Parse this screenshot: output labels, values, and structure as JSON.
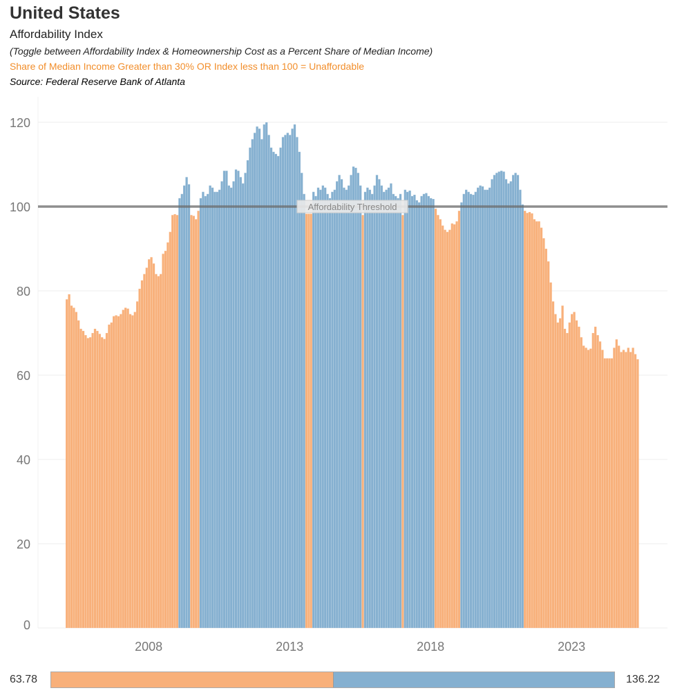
{
  "header": {
    "title": "United States",
    "subtitle": "Affordability Index",
    "note": "(Toggle between Affordability Index & Homeownership Cost as a Percent Share of Median Income)",
    "rule": "Share of Median Income Greater than 30% OR Index less than 100  = Unaffordable",
    "source": "Source: Federal Reserve Bank of Atlanta"
  },
  "chart_data": {
    "type": "bar",
    "frequency": "monthly",
    "x_start": "2005-01",
    "x_ticks": [
      "2008",
      "2013",
      "2018",
      "2023"
    ],
    "y_ticks": [
      0,
      20,
      40,
      60,
      80,
      100,
      120
    ],
    "ylim": [
      0,
      125
    ],
    "grid": "horizontal",
    "threshold": {
      "value": 100,
      "label": "Affordability Threshold",
      "color": "#6b6b6b"
    },
    "colors": {
      "below_threshold": "#f8b07a",
      "above_threshold": "#85b0d0"
    },
    "values": [
      78,
      79.2,
      76.5,
      76,
      75,
      73,
      71,
      70.5,
      69.5,
      68.8,
      69,
      70,
      71,
      70.5,
      69.8,
      69,
      68.6,
      70,
      72,
      72.5,
      74,
      74.2,
      74,
      74.5,
      75.5,
      76,
      75.8,
      74.5,
      74.2,
      75,
      77.5,
      80.5,
      82.5,
      84,
      85.5,
      87.5,
      88,
      86.5,
      84,
      83.5,
      84,
      88.8,
      89.5,
      91.5,
      94,
      98,
      98.2,
      98,
      102,
      103,
      105,
      107,
      105.3,
      98,
      97.8,
      97,
      99,
      102,
      103.5,
      102.5,
      103,
      105,
      104.5,
      103.5,
      103.5,
      104,
      106,
      108.5,
      108.5,
      105,
      104.5,
      106,
      108.8,
      108.5,
      107,
      105.5,
      108,
      111,
      114,
      116,
      117.5,
      119,
      118.5,
      116,
      119.5,
      120,
      117,
      114,
      113,
      112.5,
      112,
      114,
      116.5,
      117,
      117.5,
      117,
      118.5,
      119.5,
      116.5,
      113,
      108,
      103,
      98.3,
      98.3,
      98.3,
      103.5,
      102.5,
      104.5,
      104,
      105,
      104.5,
      103,
      102,
      103.5,
      104,
      106,
      107.5,
      106.5,
      104.5,
      104,
      105,
      107.5,
      109.5,
      109.2,
      108,
      105,
      98,
      103.5,
      104.5,
      104,
      103,
      105,
      107.5,
      106.5,
      105,
      103.5,
      104,
      104.5,
      105.5,
      103,
      102.5,
      102,
      103,
      98,
      104,
      103.5,
      103.8,
      102.5,
      102.8,
      101.5,
      101,
      102.5,
      103,
      103.2,
      102.5,
      102,
      101.8,
      99.5,
      98,
      97,
      95.5,
      94.5,
      94,
      94.5,
      96,
      95.8,
      96.5,
      99,
      101,
      103,
      104,
      103.5,
      103,
      102.8,
      103.5,
      104.5,
      105,
      104.8,
      104,
      104,
      104.5,
      106.5,
      107.5,
      108,
      108.3,
      108.5,
      108.3,
      106.5,
      105.5,
      106,
      107.5,
      108,
      107.5,
      104,
      100.5,
      99,
      98.5,
      98.7,
      98.4,
      97,
      96.5,
      96.5,
      95,
      92.5,
      90,
      87,
      82,
      77.5,
      74.5,
      72.5,
      73.5,
      76.5,
      71,
      70,
      72.5,
      74.5,
      75,
      73,
      71.5,
      69,
      67,
      66.5,
      66,
      66.3,
      70,
      71.5,
      69.5,
      68,
      66,
      64,
      64,
      64,
      64,
      66.5,
      68.5,
      67,
      65.5,
      66,
      65.5,
      66.5,
      65.5,
      66.5,
      65,
      63.78
    ]
  },
  "legend": {
    "min": "63.78",
    "max": "136.22",
    "min_value": 63.78,
    "max_value": 136.22,
    "split_value": 100
  }
}
